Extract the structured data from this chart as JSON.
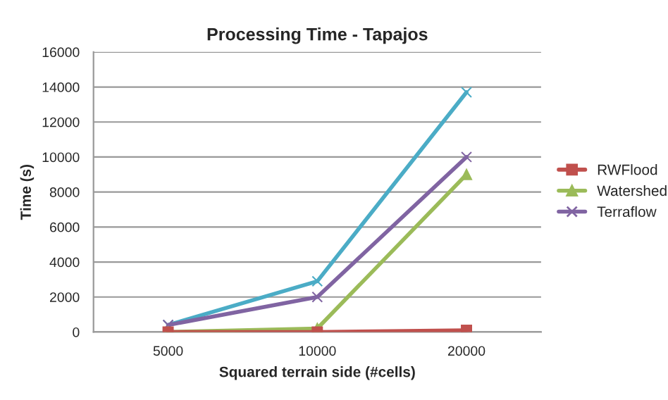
{
  "chart_data": {
    "type": "line",
    "title": "Processing Time - Tapajos",
    "xlabel": "Squared terrain side (#cells)",
    "ylabel": "Time (s)",
    "categories": [
      "5000",
      "10000",
      "20000"
    ],
    "series": [
      {
        "name": "RWFlood",
        "color": "#c0504d",
        "marker": "square",
        "values": [
          0,
          0,
          100
        ]
      },
      {
        "name": "Watershed",
        "color": "#9bbb59",
        "marker": "triangle",
        "values": [
          0,
          200,
          9000
        ]
      },
      {
        "name": "Terraflow",
        "color": "#8064a2",
        "marker": "cross",
        "values": [
          400,
          2000,
          10000
        ]
      },
      {
        "color": "#4bacc6",
        "marker": "cross",
        "values": [
          400,
          2900,
          13700
        ]
      }
    ],
    "ylim": [
      0,
      16000
    ],
    "yticks": [
      0,
      2000,
      4000,
      6000,
      8000,
      10000,
      12000,
      14000,
      16000
    ],
    "grid": "y",
    "legend": "right"
  }
}
